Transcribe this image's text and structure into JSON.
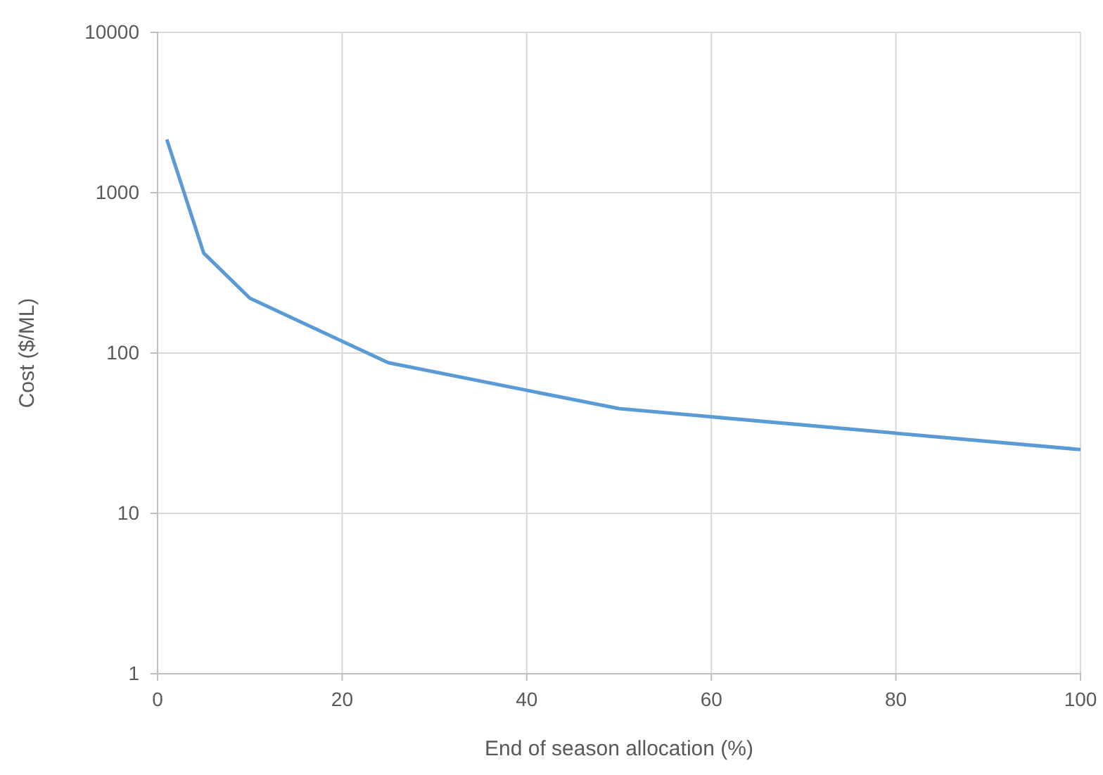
{
  "chart_data": {
    "type": "line",
    "xlabel": "End of season allocation (%)",
    "ylabel": "Cost ($/ML)",
    "x": [
      1,
      5,
      10,
      25,
      50,
      100
    ],
    "series": [
      {
        "color": "#5b9bd5",
        "values": [
          2150,
          420,
          220,
          87,
          45,
          25
        ]
      }
    ],
    "xlim": [
      0,
      100
    ],
    "xticks": [
      0,
      20,
      40,
      60,
      80,
      100
    ],
    "ylim": [
      1,
      10000
    ],
    "yticks": [
      1,
      10,
      100,
      1000,
      10000
    ],
    "log": "y",
    "grid": true,
    "marker": "none",
    "line_style": "solid"
  }
}
